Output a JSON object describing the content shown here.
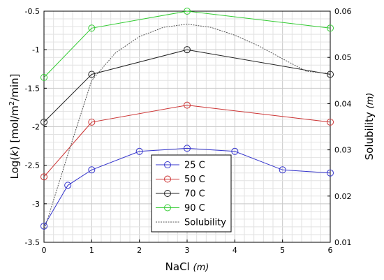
{
  "chart_data": {
    "type": "line",
    "xlabel_main": "NaCl ",
    "xlabel_unit": "(m)",
    "ylabel_left_pre": "Log(",
    "ylabel_left_k": "k",
    "ylabel_left_post": ") [mol/m",
    "ylabel_left_sup": "2",
    "ylabel_left_end": "/min]",
    "ylabel_right_main": "Solubility ",
    "ylabel_right_unit": "(m)",
    "xlim": [
      0,
      6
    ],
    "ylim_left": [
      -3.5,
      -0.5
    ],
    "ylim_right": [
      0.01,
      0.06
    ],
    "x_ticks": [
      "0",
      "1",
      "2",
      "3",
      "4",
      "5",
      "6"
    ],
    "y_left_ticks": [
      "-0.5",
      "-1",
      "-1.5",
      "-2",
      "-2.5",
      "-3",
      "-3.5"
    ],
    "y_right_ticks": [
      "0.06",
      "0.05",
      "0.04",
      "0.03",
      "0.02",
      "0.01"
    ],
    "grid": true,
    "legend_position": "lower-center",
    "series": [
      {
        "name": "25 C",
        "color": "#3333cc",
        "axis": "left",
        "marker": "circle",
        "x": [
          0,
          0.5,
          1,
          2,
          3,
          4,
          5,
          6
        ],
        "y": [
          -3.29,
          -2.76,
          -2.56,
          -2.32,
          -2.28,
          -2.32,
          -2.56,
          -2.6
        ]
      },
      {
        "name": "50 C",
        "color": "#cc3333",
        "axis": "left",
        "marker": "circle",
        "x": [
          0,
          1,
          3,
          6
        ],
        "y": [
          -2.65,
          -1.94,
          -1.72,
          -1.94
        ]
      },
      {
        "name": "70 C",
        "color": "#222222",
        "axis": "left",
        "marker": "circle",
        "x": [
          0,
          1,
          3,
          6
        ],
        "y": [
          -1.94,
          -1.32,
          -1.0,
          -1.32
        ]
      },
      {
        "name": "90 C",
        "color": "#33cc33",
        "axis": "left",
        "marker": "circle",
        "x": [
          0,
          1,
          3,
          6
        ],
        "y": [
          -1.36,
          -0.72,
          -0.5,
          -0.72
        ]
      },
      {
        "name": "Solubility",
        "color": "#555555",
        "axis": "right",
        "marker": "none",
        "dashed": true,
        "x": [
          0,
          0.5,
          1,
          1.5,
          2,
          2.5,
          3,
          3.5,
          4,
          4.5,
          5,
          5.5,
          6
        ],
        "y": [
          0.0125,
          0.029,
          0.045,
          0.051,
          0.0545,
          0.0565,
          0.0572,
          0.0565,
          0.0548,
          0.0525,
          0.0497,
          0.047,
          0.0465
        ]
      }
    ]
  }
}
